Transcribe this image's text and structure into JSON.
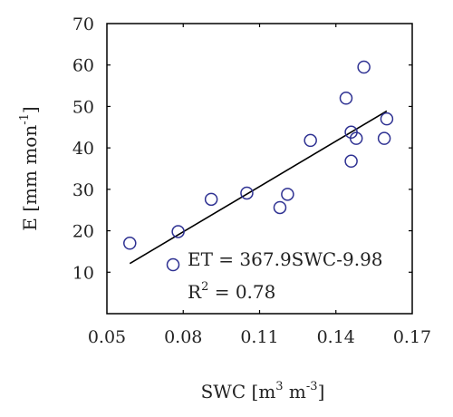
{
  "chart_data": {
    "type": "scatter",
    "title": "",
    "xlabel": {
      "base": "SWC [m",
      "sup1": "3",
      "mid": " m",
      "sup2": "-3",
      "end": "]"
    },
    "ylabel": {
      "base": "E [mm mon",
      "sup": "-1",
      "end": "]"
    },
    "xlim": [
      0.05,
      0.17
    ],
    "ylim": [
      0,
      70
    ],
    "xticks": [
      0.05,
      0.08,
      0.11,
      0.14,
      0.17
    ],
    "xtick_labels": [
      "0.05",
      "0.08",
      "0.11",
      "0.14",
      "0.17"
    ],
    "yticks": [
      10,
      20,
      30,
      40,
      50,
      60,
      70
    ],
    "ytick_labels": [
      "10",
      "20",
      "30",
      "40",
      "50",
      "60",
      "70"
    ],
    "grid": false,
    "marker_color": "#2e3192",
    "line_color": "#000000",
    "points": [
      {
        "x": 0.059,
        "y": 17.0
      },
      {
        "x": 0.076,
        "y": 11.8
      },
      {
        "x": 0.078,
        "y": 19.8
      },
      {
        "x": 0.091,
        "y": 27.6
      },
      {
        "x": 0.105,
        "y": 29.1
      },
      {
        "x": 0.118,
        "y": 25.6
      },
      {
        "x": 0.121,
        "y": 28.8
      },
      {
        "x": 0.13,
        "y": 41.8
      },
      {
        "x": 0.144,
        "y": 52.0
      },
      {
        "x": 0.146,
        "y": 43.8
      },
      {
        "x": 0.146,
        "y": 36.8
      },
      {
        "x": 0.148,
        "y": 42.3
      },
      {
        "x": 0.151,
        "y": 59.5
      },
      {
        "x": 0.159,
        "y": 42.3
      },
      {
        "x": 0.16,
        "y": 47.0
      }
    ],
    "fit_line": {
      "x": [
        0.059,
        0.16
      ],
      "y": [
        12.1,
        48.9
      ]
    },
    "annotations": {
      "equation": "ET = 367.9SWC-9.98",
      "r2_base": "R",
      "r2_sup": "2",
      "r2_value": " = 0.78"
    }
  }
}
